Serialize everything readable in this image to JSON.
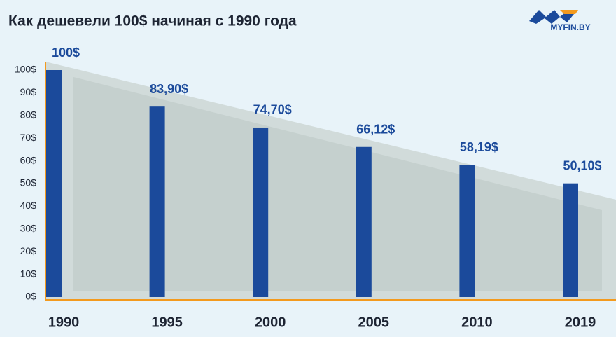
{
  "chart_data": {
    "type": "bar",
    "title": "Как дешевели 100$ начиная с 1990 года",
    "logo_text": "MYFIN.BY",
    "categories": [
      "1990",
      "1995",
      "2000",
      "2005",
      "2010",
      "2019"
    ],
    "values": [
      100,
      83.9,
      74.7,
      66.12,
      58.19,
      50.1
    ],
    "value_labels": [
      "100$",
      "83,90$",
      "74,70$",
      "66,12$",
      "58,19$",
      "50,10$"
    ],
    "color": "#1b4a9b",
    "ylim": [
      0,
      100
    ],
    "yticks": [
      {
        "value": 0,
        "label": "0$"
      },
      {
        "value": 10,
        "label": "10$"
      },
      {
        "value": 20,
        "label": "20$"
      },
      {
        "value": 30,
        "label": "30$"
      },
      {
        "value": 40,
        "label": "40$"
      },
      {
        "value": 50,
        "label": "50$"
      },
      {
        "value": 60,
        "label": "60$"
      },
      {
        "value": 70,
        "label": "70$"
      },
      {
        "value": 80,
        "label": "80$"
      },
      {
        "value": 90,
        "label": "90$"
      },
      {
        "value": 100,
        "label": "100$"
      }
    ],
    "grid": false
  }
}
